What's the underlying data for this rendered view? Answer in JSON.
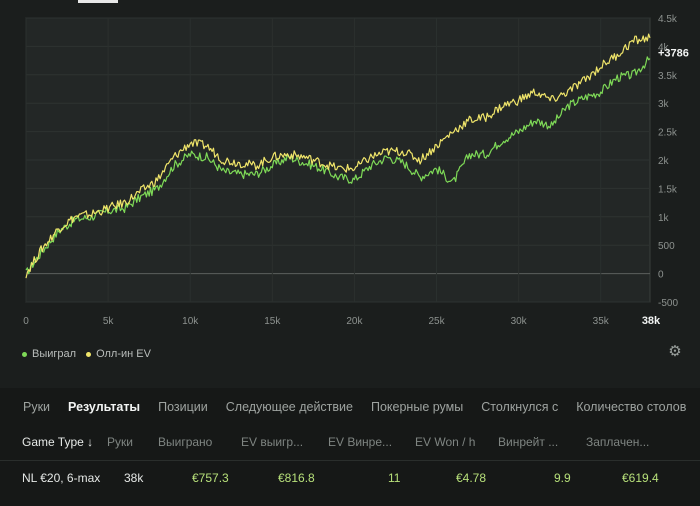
{
  "chart_data": {
    "type": "line",
    "x_ticks": [
      "0",
      "5k",
      "10k",
      "15k",
      "20k",
      "25k",
      "30k",
      "35k"
    ],
    "x_end_label": "38k",
    "y_ticks": [
      "-500",
      "0",
      "500",
      "1k",
      "1.5k",
      "2k",
      "2.5k",
      "3k",
      "3.5k",
      "4k",
      "4.5k"
    ],
    "xlim": [
      0,
      38000
    ],
    "ylim": [
      -500,
      4500
    ],
    "end_value_label": "+3786",
    "series": [
      {
        "name": "Выиграл",
        "color": "#7ed957",
        "x": [
          0,
          1000,
          2000,
          3000,
          4000,
          5000,
          6000,
          7000,
          8000,
          9000,
          10000,
          11000,
          12000,
          13000,
          14000,
          15000,
          16000,
          17000,
          18000,
          19000,
          20000,
          21000,
          22000,
          23000,
          24000,
          25000,
          26000,
          27000,
          28000,
          29000,
          30000,
          31000,
          32000,
          33000,
          34000,
          35000,
          36000,
          37000,
          38000
        ],
        "y": [
          0,
          400,
          750,
          950,
          1000,
          1100,
          1150,
          1350,
          1500,
          1900,
          2100,
          2050,
          1800,
          1750,
          1750,
          1900,
          2050,
          1950,
          1850,
          1700,
          1650,
          1900,
          2050,
          1950,
          1700,
          1850,
          1600,
          2100,
          2100,
          2350,
          2500,
          2700,
          2600,
          2950,
          3100,
          3200,
          3450,
          3500,
          3786
        ]
      },
      {
        "name": "Олл-ин EV",
        "color": "#f0e56a",
        "x": [
          0,
          1000,
          2000,
          3000,
          4000,
          5000,
          6000,
          7000,
          8000,
          9000,
          10000,
          11000,
          12000,
          13000,
          14000,
          15000,
          16000,
          17000,
          18000,
          19000,
          20000,
          21000,
          22000,
          23000,
          24000,
          25000,
          26000,
          27000,
          28000,
          29000,
          30000,
          31000,
          32000,
          33000,
          34000,
          35000,
          36000,
          37000,
          38000
        ],
        "y": [
          0,
          450,
          800,
          1000,
          1050,
          1150,
          1250,
          1450,
          1650,
          2050,
          2300,
          2250,
          2000,
          1950,
          1900,
          2050,
          2100,
          2050,
          1950,
          1850,
          1850,
          2050,
          2150,
          2150,
          2000,
          2250,
          2500,
          2700,
          2750,
          2950,
          3050,
          3200,
          3050,
          3200,
          3400,
          3650,
          3850,
          4100,
          4150
        ]
      }
    ],
    "grid": true,
    "legend": "bottom-left"
  },
  "tabs": [
    "Руки",
    "Результаты",
    "Позиции",
    "Следующее действие",
    "Покерные румы",
    "Столкнулся с",
    "Количество столов"
  ],
  "active_tab": "Результаты",
  "columns": [
    "Game Type ↓",
    "Руки",
    "Выиграно",
    "EV выигр...",
    "EV Винре...",
    "EV Won / h",
    "Винрейт ...",
    "Заплачен..."
  ],
  "row": {
    "game_type": "NL €20, 6-max",
    "hands": "38k",
    "won": "€757.3",
    "ev_won": "€816.8",
    "ev_winrate": "11",
    "ev_won_per_hour": "€4.78",
    "winrate": "9.9",
    "paid": "€619.4"
  },
  "icons": {
    "settings": "gear-icon"
  }
}
